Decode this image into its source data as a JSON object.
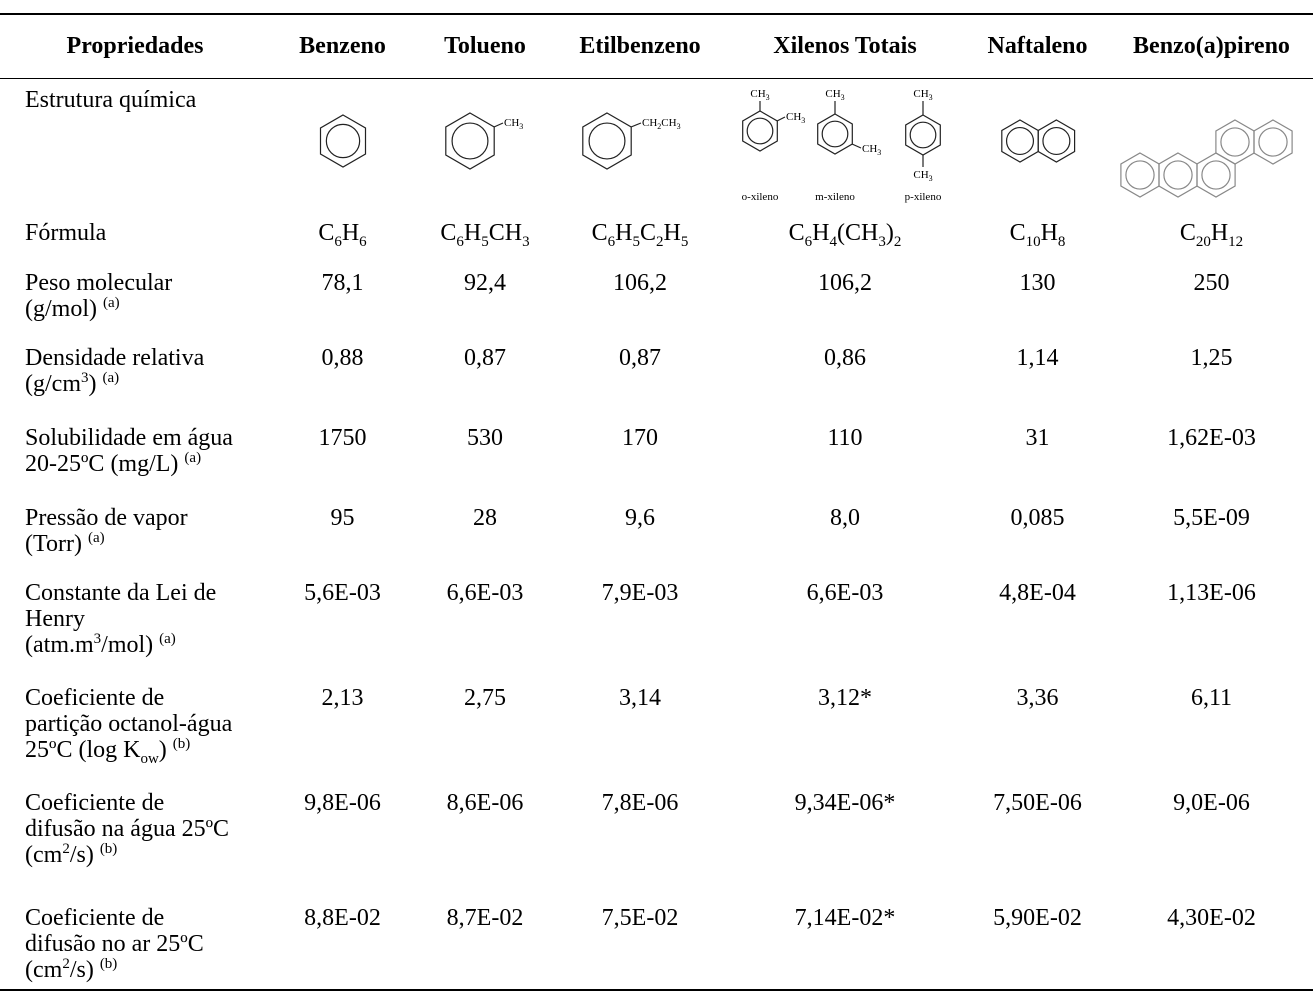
{
  "table": {
    "headers": [
      "Propriedades",
      "Benzeno",
      "Tolueno",
      "Etilbenzeno",
      "Xilenos Totais",
      "Naftaleno",
      "Benzo(a)pireno"
    ],
    "structure": {
      "label": "Estrutura química",
      "texts": {
        "tolueno": [
          [
            {
              "text": "CH"
            },
            {
              "sub": "3"
            }
          ]
        ],
        "etilbenzeno": [
          [
            {
              "text": "CH"
            },
            {
              "sub": "2"
            },
            {
              "text": "CH"
            },
            {
              "sub": "3"
            }
          ]
        ],
        "xilenos": [
          [
            {
              "text": "CH"
            },
            {
              "sub": "3"
            }
          ],
          [
            {
              "text": "CH"
            },
            {
              "sub": "3"
            }
          ],
          [
            {
              "text": "CH"
            },
            {
              "sub": "3"
            }
          ],
          [
            {
              "text": "CH"
            },
            {
              "sub": "3"
            }
          ],
          [
            {
              "text": "CH"
            },
            {
              "sub": "3"
            }
          ],
          [
            {
              "text": "CH"
            },
            {
              "sub": "3"
            }
          ],
          [
            {
              "text": "o-xileno"
            }
          ],
          [
            {
              "text": "m-xileno"
            }
          ],
          [
            {
              "text": "p-xileno"
            }
          ]
        ]
      }
    },
    "rows": [
      {
        "label": [
          [
            {
              "text": "Fórmula"
            }
          ]
        ],
        "cells": [
          [
            {
              "text": "C"
            },
            {
              "sub": "6"
            },
            {
              "text": "H"
            },
            {
              "sub": "6"
            }
          ],
          [
            {
              "text": "C"
            },
            {
              "sub": "6"
            },
            {
              "text": "H"
            },
            {
              "sub": "5"
            },
            {
              "text": "CH"
            },
            {
              "sub": "3"
            }
          ],
          [
            {
              "text": "C"
            },
            {
              "sub": "6"
            },
            {
              "text": "H"
            },
            {
              "sub": "5"
            },
            {
              "text": "C"
            },
            {
              "sub": "2"
            },
            {
              "text": "H"
            },
            {
              "sub": "5"
            }
          ],
          [
            {
              "text": "C"
            },
            {
              "sub": "6"
            },
            {
              "text": "H"
            },
            {
              "sub": "4"
            },
            {
              "text": "(CH"
            },
            {
              "sub": "3"
            },
            {
              "text": ")"
            },
            {
              "sub": "2"
            }
          ],
          [
            {
              "text": "C"
            },
            {
              "sub": "10"
            },
            {
              "text": "H"
            },
            {
              "sub": "8"
            }
          ],
          [
            {
              "text": "C"
            },
            {
              "sub": "20"
            },
            {
              "text": "H"
            },
            {
              "sub": "12"
            }
          ]
        ]
      },
      {
        "label": [
          [
            {
              "text": "Peso molecular"
            }
          ],
          [
            {
              "text": "(g/mol) "
            },
            {
              "sup": "(a)"
            }
          ]
        ],
        "cells": [
          "78,1",
          "92,4",
          "106,2",
          "106,2",
          "130",
          "250"
        ]
      },
      {
        "label": [
          [
            {
              "text": "Densidade relativa"
            }
          ],
          [
            {
              "text": "(g/cm"
            },
            {
              "sup": "3"
            },
            {
              "text": ") "
            },
            {
              "sup": "(a)"
            }
          ]
        ],
        "cells": [
          "0,88",
          "0,87",
          "0,87",
          "0,86",
          "1,14",
          "1,25"
        ]
      },
      {
        "label": [
          [
            {
              "text": "Solubilidade em água"
            }
          ],
          [
            {
              "text": "20-25ºC (mg/L) "
            },
            {
              "sup": "(a)"
            }
          ]
        ],
        "cells": [
          "1750",
          "530",
          "170",
          "110",
          "31",
          "1,62E-03"
        ]
      },
      {
        "label": [
          [
            {
              "text": "Pressão de vapor"
            }
          ],
          [
            {
              "text": "(Torr) "
            },
            {
              "sup": "(a)"
            }
          ]
        ],
        "cells": [
          "95",
          "28",
          "9,6",
          "8,0",
          "0,085",
          "5,5E-09"
        ]
      },
      {
        "label": [
          [
            {
              "text": "Constante da Lei de"
            }
          ],
          [
            {
              "text": "Henry"
            }
          ],
          [
            {
              "text": "(atm.m"
            },
            {
              "sup": "3"
            },
            {
              "text": "/mol) "
            },
            {
              "sup": "(a)"
            }
          ]
        ],
        "cells": [
          "5,6E-03",
          "6,6E-03",
          "7,9E-03",
          "6,6E-03",
          "4,8E-04",
          "1,13E-06"
        ]
      },
      {
        "label": [
          [
            {
              "text": "Coeficiente de"
            }
          ],
          [
            {
              "text": "partição octanol-água"
            }
          ],
          [
            {
              "text": "25ºC (log K"
            },
            {
              "sub": "ow"
            },
            {
              "text": ") "
            },
            {
              "sup": "(b)"
            }
          ]
        ],
        "cells": [
          "2,13",
          "2,75",
          "3,14",
          "3,12*",
          "3,36",
          "6,11"
        ]
      },
      {
        "label": [
          [
            {
              "text": "Coeficiente de"
            }
          ],
          [
            {
              "text": "difusão na água 25ºC"
            }
          ],
          [
            {
              "text": "(cm"
            },
            {
              "sup": "2"
            },
            {
              "text": "/s) "
            },
            {
              "sup": "(b)"
            }
          ]
        ],
        "cells": [
          "9,8E-06",
          "8,6E-06",
          "7,8E-06",
          "9,34E-06*",
          "7,50E-06",
          "9,0E-06"
        ]
      },
      {
        "label": [
          [
            {
              "text": "Coeficiente de"
            }
          ],
          [
            {
              "text": "difusão no ar 25ºC"
            }
          ],
          [
            {
              "text": "(cm"
            },
            {
              "sup": "2"
            },
            {
              "text": "/s) "
            },
            {
              "sup": "(b)"
            }
          ]
        ],
        "cells": [
          "8,8E-02",
          "8,7E-02",
          "7,5E-02",
          "7,14E-02*",
          "5,90E-02",
          "4,30E-02"
        ]
      }
    ]
  }
}
